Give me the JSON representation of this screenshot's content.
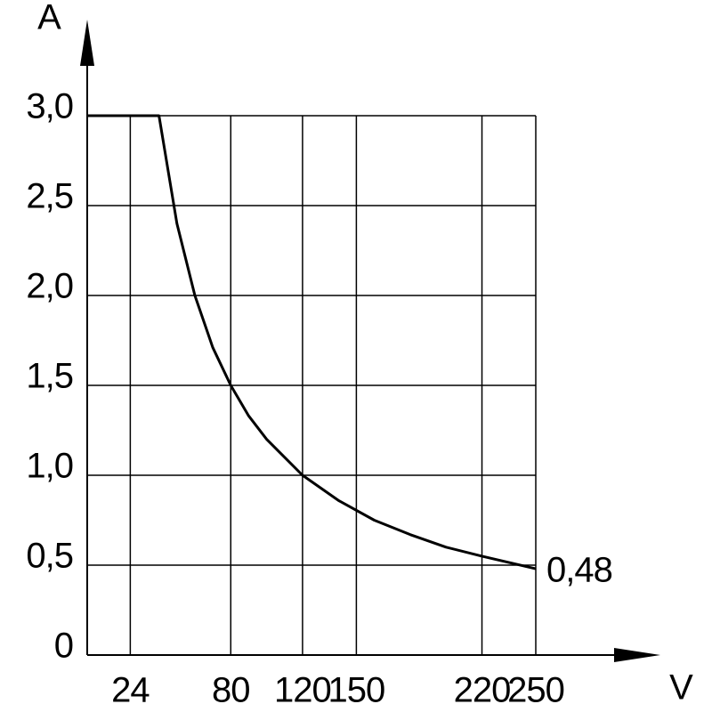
{
  "chart_data": {
    "type": "line",
    "y_label": "A",
    "x_label": "V",
    "x": [
      0,
      40,
      50,
      60,
      70,
      80,
      90,
      100,
      120,
      140,
      160,
      180,
      200,
      220,
      250
    ],
    "values": [
      3.0,
      3.0,
      2.4,
      2.0,
      1.71,
      1.5,
      1.33,
      1.2,
      1.0,
      0.86,
      0.75,
      0.67,
      0.6,
      0.55,
      0.48
    ],
    "value_labels": [
      null,
      null,
      null,
      null,
      null,
      null,
      null,
      null,
      null,
      null,
      null,
      null,
      null,
      null,
      "0,48"
    ],
    "color": "#000000",
    "xlim": [
      0,
      250
    ],
    "ylim": [
      0,
      3.0
    ],
    "xticks": [
      24,
      80,
      120,
      150,
      220,
      250
    ],
    "yticks": [
      0,
      {
        "value": 0.5,
        "label": "0,5"
      },
      {
        "value": 1.0,
        "label": "1,0"
      },
      {
        "value": 1.5,
        "label": "1,5"
      },
      {
        "value": 2.0,
        "label": "2,0"
      },
      {
        "value": 2.5,
        "label": "2,5"
      },
      {
        "value": 3.0,
        "label": "3,0"
      }
    ],
    "grid": true
  }
}
